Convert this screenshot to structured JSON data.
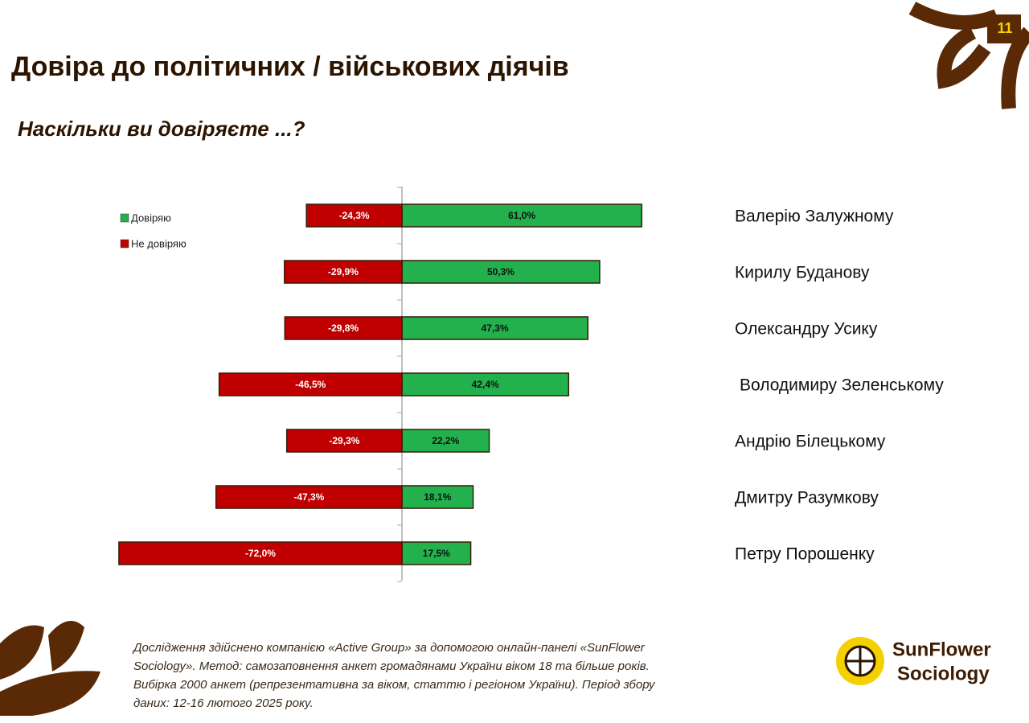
{
  "page_number": "11",
  "title": "Довіра до політичних / військових діячів",
  "subtitle": "Наскільки ви довіряєте ...?",
  "footnote": [
    "Дослідження здійснено компанією «Active Group» за допомогою онлайн-панелі «SunFlower",
    "Sociology». Метод: самозаповнення анкет громадянами України віком 18 та більше років.",
    "Вибірка 2000 анкет (репрезентативна за віком, статтю і регіоном України). Період збору",
    "даних: 12-16 лютого 2025 року."
  ],
  "logo": [
    "SunFlower",
    "Sociology"
  ],
  "chart_data": {
    "type": "diverging-bar",
    "categories": [
      "Валерію Залужному",
      "Кирилу Буданову",
      "Олександру Усику",
      "Володимиру Зеленському",
      "Андрію Білецькому",
      "Дмитру Разумкову",
      "Петру Порошенку"
    ],
    "series": [
      {
        "name": "Довіряю",
        "color": "#22b14c",
        "values": [
          61.0,
          50.3,
          47.3,
          42.4,
          22.2,
          18.1,
          17.5
        ],
        "value_labels": [
          "61,0%",
          "50,3%",
          "47,3%",
          "42,4%",
          "22,2%",
          "18,1%",
          "17,5%"
        ]
      },
      {
        "name": "Не довіряю",
        "color": "#c00000",
        "values": [
          -24.3,
          -29.9,
          -29.8,
          -46.5,
          -29.3,
          -47.3,
          -72.0
        ],
        "value_labels": [
          "-24,3%",
          "-29,9%",
          "-29,8%",
          "-46,5%",
          "-29,3%",
          "-47,3%",
          "-72,0%"
        ]
      }
    ]
  }
}
